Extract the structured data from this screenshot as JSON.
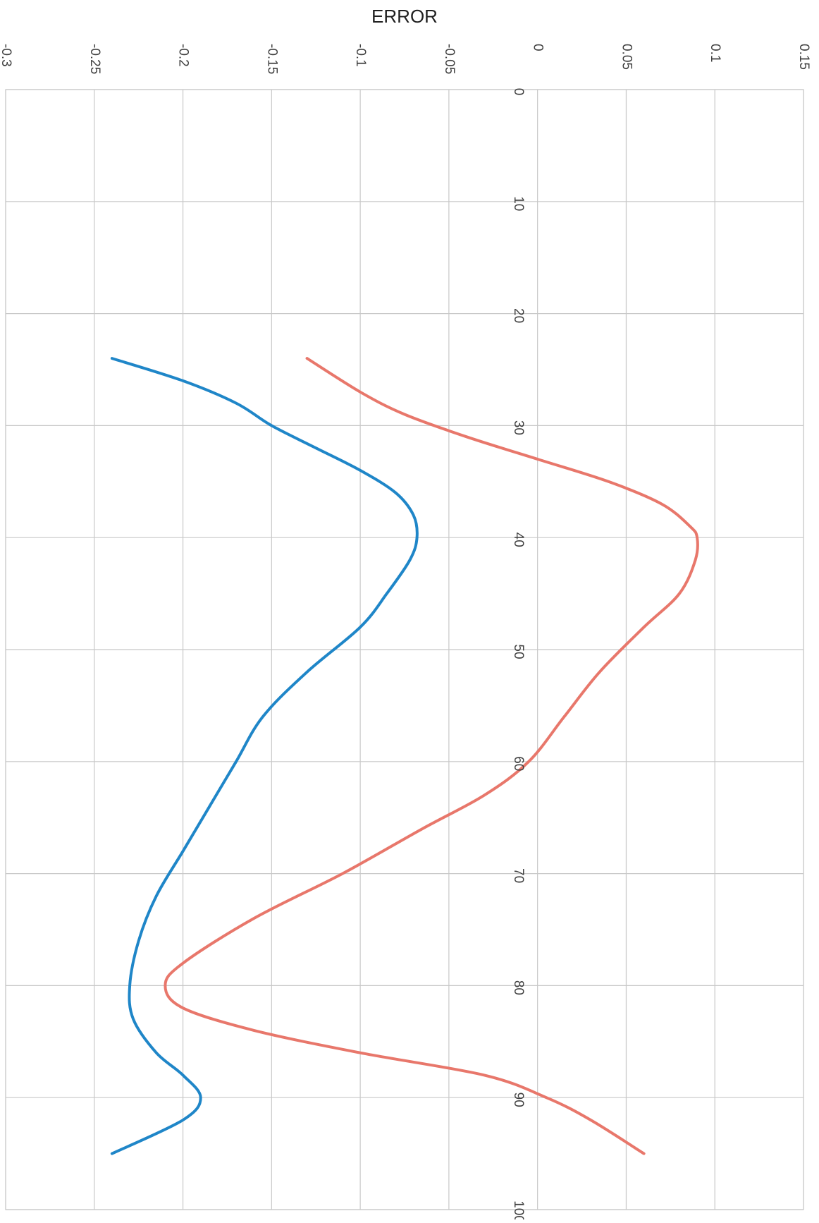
{
  "chart_data": {
    "type": "line",
    "title": "ERROR",
    "xlabel": "",
    "ylabel": "",
    "orientation": "rotated-90-clockwise",
    "grid": true,
    "legend": "none",
    "xlim": [
      0,
      100
    ],
    "ylim": [
      -0.3,
      0.15
    ],
    "x_ticks": [
      "0",
      "10",
      "20",
      "30",
      "40",
      "50",
      "60",
      "70",
      "80",
      "90",
      "100"
    ],
    "y_ticks": [
      "-0.3",
      "-0.25",
      "-0.2",
      "-0.15",
      "-0.1",
      "-0.05",
      "0",
      "0.05",
      "0.1",
      "0.15"
    ],
    "series": [
      {
        "color": "#e8776b",
        "points": [
          [
            24,
            -0.13
          ],
          [
            27,
            -0.1
          ],
          [
            29,
            -0.075
          ],
          [
            31,
            -0.04
          ],
          [
            33,
            0
          ],
          [
            35,
            0.04
          ],
          [
            37,
            0.07
          ],
          [
            39,
            0.086
          ],
          [
            40,
            0.09
          ],
          [
            42,
            0.089
          ],
          [
            45,
            0.08
          ],
          [
            48,
            0.06
          ],
          [
            52,
            0.035
          ],
          [
            56,
            0.015
          ],
          [
            60,
            -0.005
          ],
          [
            63,
            -0.03
          ],
          [
            66,
            -0.065
          ],
          [
            70,
            -0.11
          ],
          [
            74,
            -0.16
          ],
          [
            78,
            -0.2
          ],
          [
            80,
            -0.21
          ],
          [
            82,
            -0.2
          ],
          [
            84,
            -0.16
          ],
          [
            86,
            -0.1
          ],
          [
            88,
            -0.03
          ],
          [
            90,
            0.005
          ],
          [
            92,
            0.03
          ],
          [
            95,
            0.06
          ]
        ]
      },
      {
        "color": "#1f86c8",
        "points": [
          [
            24,
            -0.24
          ],
          [
            26,
            -0.2
          ],
          [
            28,
            -0.17
          ],
          [
            30,
            -0.15
          ],
          [
            32,
            -0.125
          ],
          [
            34,
            -0.1
          ],
          [
            36,
            -0.08
          ],
          [
            38,
            -0.07
          ],
          [
            40,
            -0.068
          ],
          [
            42,
            -0.072
          ],
          [
            45,
            -0.085
          ],
          [
            48,
            -0.1
          ],
          [
            52,
            -0.13
          ],
          [
            56,
            -0.155
          ],
          [
            60,
            -0.17
          ],
          [
            64,
            -0.185
          ],
          [
            68,
            -0.2
          ],
          [
            72,
            -0.215
          ],
          [
            76,
            -0.225
          ],
          [
            80,
            -0.23
          ],
          [
            83,
            -0.228
          ],
          [
            86,
            -0.215
          ],
          [
            88,
            -0.2
          ],
          [
            90,
            -0.19
          ],
          [
            92,
            -0.2
          ],
          [
            95,
            -0.24
          ]
        ]
      }
    ]
  }
}
